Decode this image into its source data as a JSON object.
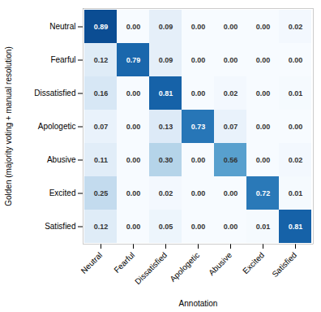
{
  "chart_data": {
    "type": "heatmap",
    "categories": [
      "Neutral",
      "Fearful",
      "Dissatisfied",
      "Apologetic",
      "Abusive",
      "Excited",
      "Satisfied"
    ],
    "xlabel": "Annotation",
    "ylabel": "Golden (majority voting + manual resolution)",
    "matrix": [
      [
        0.89,
        0.0,
        0.09,
        0.0,
        0.0,
        0.0,
        0.02
      ],
      [
        0.12,
        0.79,
        0.09,
        0.0,
        0.0,
        0.0,
        0.0
      ],
      [
        0.16,
        0.0,
        0.81,
        0.0,
        0.02,
        0.0,
        0.01
      ],
      [
        0.07,
        0.0,
        0.13,
        0.73,
        0.07,
        0.0,
        0.0
      ],
      [
        0.11,
        0.0,
        0.3,
        0.0,
        0.56,
        0.0,
        0.02
      ],
      [
        0.25,
        0.0,
        0.02,
        0.0,
        0.0,
        0.72,
        0.01
      ],
      [
        0.12,
        0.0,
        0.05,
        0.0,
        0.0,
        0.01,
        0.81
      ]
    ],
    "value_labels": [
      [
        "0.89",
        "0.00",
        "0.09",
        "0.00",
        "0.00",
        "0.00",
        "0.02"
      ],
      [
        "0.12",
        "0.79",
        "0.09",
        "0.00",
        "0.00",
        "0.00",
        "0.00"
      ],
      [
        "0.16",
        "0.00",
        "0.81",
        "0.00",
        "0.02",
        "0.00",
        "0.01"
      ],
      [
        "0.07",
        "0.00",
        "0.13",
        "0.73",
        "0.07",
        "0.00",
        "0.00"
      ],
      [
        "0.11",
        "0.00",
        "0.30",
        "0.00",
        "0.56",
        "0.00",
        "0.02"
      ],
      [
        "0.25",
        "0.00",
        "0.02",
        "0.00",
        "0.00",
        "0.72",
        "0.01"
      ],
      [
        "0.12",
        "0.00",
        "0.05",
        "0.00",
        "0.00",
        "0.01",
        "0.81"
      ]
    ],
    "color": "Blues",
    "vlim": [
      0.0,
      1.0
    ],
    "data_labels": true
  }
}
